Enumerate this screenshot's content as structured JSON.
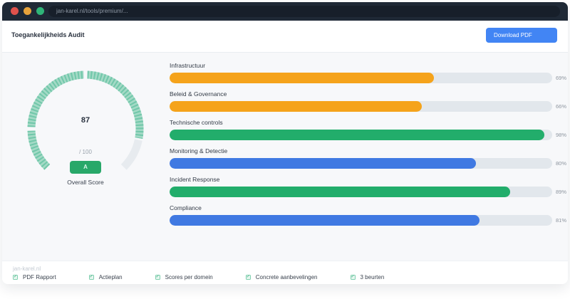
{
  "browser": {
    "url": "jan-karel.nl/tools/premium/...",
    "traffic_lights": {
      "close": "#e0524c",
      "minimize": "#e8a33b",
      "maximize": "#2fb578"
    }
  },
  "header": {
    "title": "Toegankelijkheids Audit",
    "download_button": "Download PDF",
    "button_color": "#4285f4"
  },
  "chart_data": [
    {
      "type": "gauge",
      "title": "Overall Score",
      "value": 87,
      "max": 100,
      "max_label": "/ 100",
      "grade": "A",
      "arc_color": "#6cc4a6",
      "arc_color_light": "#9ad6c0",
      "track_color": "#e7ebef",
      "grade_badge_color": "#28a869",
      "start_angle_deg": 225,
      "sweep_deg": 270
    },
    {
      "type": "bar",
      "orientation": "horizontal",
      "categories": [
        "Infrastructuur",
        "Beleid & Governance",
        "Technische controls",
        "Monitoring & Detectie",
        "Incident Response",
        "Compliance"
      ],
      "values": [
        69,
        66,
        98,
        80,
        89,
        81
      ],
      "unit": "%",
      "colors": [
        "#f5a31b",
        "#f5a31b",
        "#22ad6b",
        "#4079e2",
        "#22ad6b",
        "#4079e2"
      ],
      "track_color": "#e2e7ec",
      "xlim": [
        0,
        100
      ],
      "grid": false,
      "legend": false
    }
  ],
  "footer": {
    "brand": "jan-karel.nl",
    "check_icon_color": "#2fa878",
    "items": [
      "PDF Rapport",
      "Actieplan",
      "Scores per domein",
      "Concrete aanbevelingen",
      "3 beurten"
    ]
  }
}
